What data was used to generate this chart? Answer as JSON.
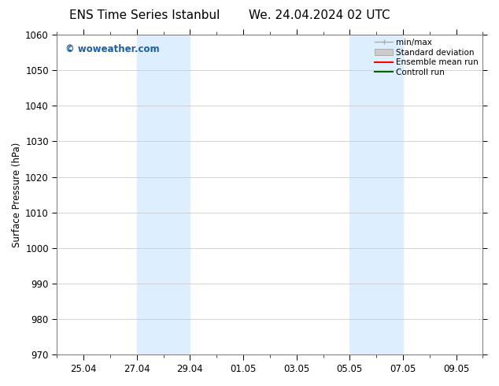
{
  "title_left": "ENS Time Series Istanbul",
  "title_right": "We. 24.04.2024 02 UTC",
  "ylabel": "Surface Pressure (hPa)",
  "ylim": [
    970,
    1060
  ],
  "yticks": [
    970,
    980,
    990,
    1000,
    1010,
    1020,
    1030,
    1040,
    1050,
    1060
  ],
  "xtick_labels": [
    "25.04",
    "27.04",
    "29.04",
    "01.05",
    "03.05",
    "05.05",
    "07.05",
    "09.05"
  ],
  "xtick_positions": [
    1,
    3,
    5,
    7,
    9,
    11,
    13,
    15
  ],
  "xminor_positions": [
    0,
    1,
    2,
    3,
    4,
    5,
    6,
    7,
    8,
    9,
    10,
    11,
    12,
    13,
    14,
    15,
    16
  ],
  "shade_bands": [
    {
      "x_start": 3,
      "x_end": 5
    },
    {
      "x_start": 11,
      "x_end": 13
    }
  ],
  "xlim": [
    0,
    16
  ],
  "shade_color": "#ddeeff",
  "watermark_text": "© woweather.com",
  "watermark_color": "#1a5fa8",
  "bg_color": "#ffffff",
  "plot_bg_color": "#ffffff",
  "grid_color": "#cccccc",
  "legend_items": [
    {
      "label": "min/max",
      "color": "#aaaaaa",
      "lw": 1.0,
      "style": "minmax"
    },
    {
      "label": "Standard deviation",
      "color": "#cccccc",
      "lw": 5,
      "style": "rect"
    },
    {
      "label": "Ensemble mean run",
      "color": "#ff0000",
      "lw": 1.5,
      "style": "line"
    },
    {
      "label": "Controll run",
      "color": "#006400",
      "lw": 1.5,
      "style": "line"
    }
  ],
  "title_fontsize": 11,
  "axis_fontsize": 8.5,
  "tick_fontsize": 8.5,
  "legend_fontsize": 7.5
}
